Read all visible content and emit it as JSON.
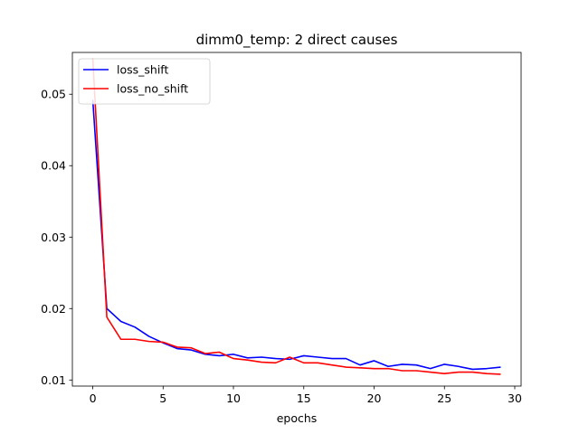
{
  "chart_data": {
    "type": "line",
    "title": "dimm0_temp: 2 direct causes",
    "xlabel": "epochs",
    "ylabel": "",
    "xlim": [
      -1.45,
      30.45
    ],
    "ylim": [
      0.00915,
      0.05585
    ],
    "x_ticks": [
      0,
      5,
      10,
      15,
      20,
      25,
      30
    ],
    "y_ticks": [
      0.01,
      0.02,
      0.03,
      0.04,
      0.05
    ],
    "x_tick_labels": [
      "0",
      "5",
      "10",
      "15",
      "20",
      "25",
      "30"
    ],
    "y_tick_labels": [
      "0.01",
      "0.02",
      "0.03",
      "0.04",
      "0.05"
    ],
    "grid": false,
    "legend_position": "top-left",
    "x": [
      0,
      1,
      2,
      3,
      4,
      5,
      6,
      7,
      8,
      9,
      10,
      11,
      12,
      13,
      14,
      15,
      16,
      17,
      18,
      19,
      20,
      21,
      22,
      23,
      24,
      25,
      26,
      27,
      28,
      29
    ],
    "series": [
      {
        "name": "loss_shift",
        "color": "#0000ff",
        "values": [
          0.0492,
          0.02,
          0.0182,
          0.0174,
          0.0161,
          0.0152,
          0.0144,
          0.0142,
          0.0136,
          0.0134,
          0.0136,
          0.0131,
          0.0132,
          0.013,
          0.0129,
          0.0134,
          0.0132,
          0.013,
          0.013,
          0.0121,
          0.0127,
          0.0119,
          0.0122,
          0.0121,
          0.0116,
          0.0122,
          0.0119,
          0.0115,
          0.0116,
          0.0118
        ]
      },
      {
        "name": "loss_no_shift",
        "color": "#ff0000",
        "values": [
          0.055,
          0.0188,
          0.0157,
          0.0157,
          0.0154,
          0.0153,
          0.0146,
          0.0145,
          0.0137,
          0.0139,
          0.013,
          0.0128,
          0.0125,
          0.0124,
          0.0132,
          0.0124,
          0.0124,
          0.0121,
          0.0118,
          0.0117,
          0.0116,
          0.0116,
          0.0113,
          0.0113,
          0.0111,
          0.0109,
          0.0111,
          0.0111,
          0.0109,
          0.0108
        ]
      }
    ]
  }
}
